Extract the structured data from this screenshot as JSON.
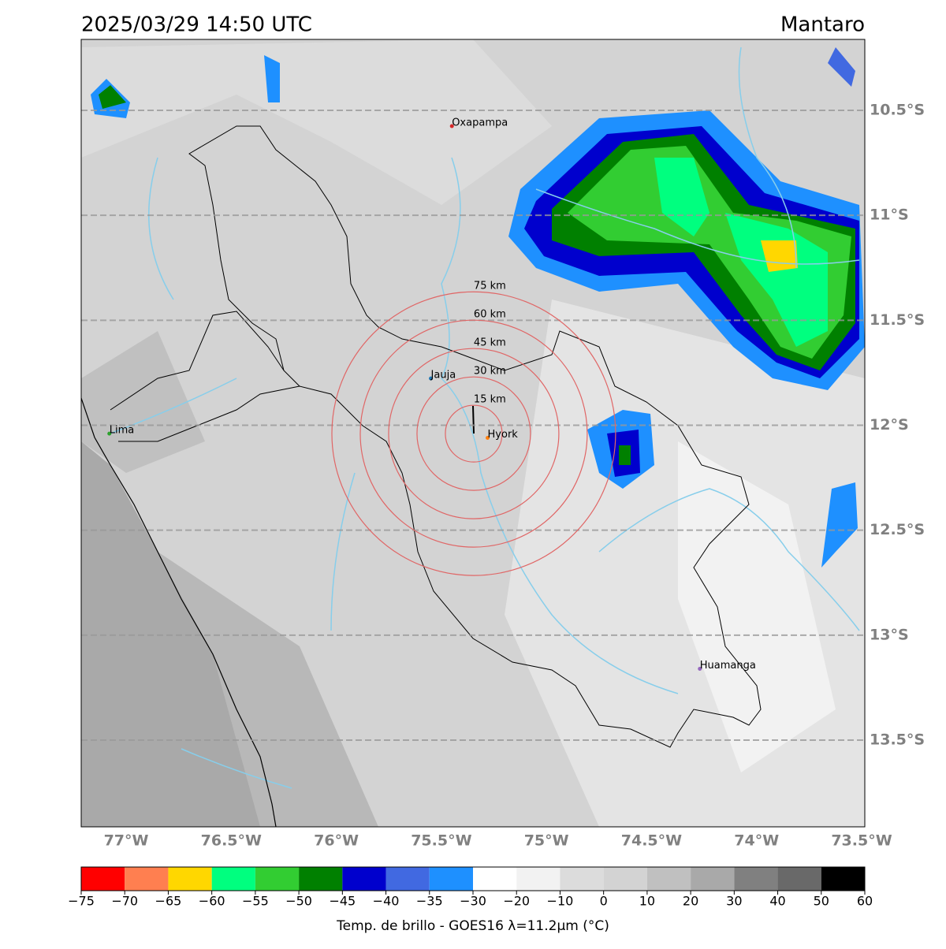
{
  "header": {
    "title": "2025/03/29 14:50 UTC",
    "region": "Mantaro"
  },
  "map": {
    "xlim": [
      -77.214,
      -73.485
    ],
    "ylim": [
      -13.913,
      -10.162
    ],
    "grid": true,
    "xticks": [
      {
        "value": -77,
        "label": "77°W"
      },
      {
        "value": -76.5,
        "label": "76.5°W"
      },
      {
        "value": -76,
        "label": "76°W"
      },
      {
        "value": -75.5,
        "label": "75.5°W"
      },
      {
        "value": -75,
        "label": "75°W"
      },
      {
        "value": -74.5,
        "label": "74.5°W"
      },
      {
        "value": -74,
        "label": "74°W"
      },
      {
        "value": -73.5,
        "label": "73.5°W"
      }
    ],
    "yticks": [
      {
        "value": -10.5,
        "label": "10.5°S"
      },
      {
        "value": -11,
        "label": "11°S"
      },
      {
        "value": -11.5,
        "label": "11.5°S"
      },
      {
        "value": -12,
        "label": "12°S"
      },
      {
        "value": -12.5,
        "label": "12.5°S"
      },
      {
        "value": -13,
        "label": "13°S"
      },
      {
        "value": -13.5,
        "label": "13.5°S"
      }
    ],
    "cities": [
      {
        "name": "Oxapampa",
        "lon": -75.45,
        "lat": -10.575,
        "color": "#d62728"
      },
      {
        "name": "Jauja",
        "lon": -75.55,
        "lat": -11.777,
        "color": "#1f77b4"
      },
      {
        "name": "Lima",
        "lon": -77.08,
        "lat": -12.04,
        "color": "#2ca02c"
      },
      {
        "name": "Hyork",
        "lon": -75.28,
        "lat": -12.06,
        "color": "#ff7f0e"
      },
      {
        "name": "Huamanga",
        "lon": -74.27,
        "lat": -13.16,
        "color": "#9467bd"
      }
    ],
    "rings": {
      "center": [
        -75.346,
        -12.04
      ],
      "radii_km": [
        15,
        30,
        45,
        60,
        75
      ],
      "labels": [
        "15 km",
        "30 km",
        "45 km",
        "60 km",
        "75 km"
      ],
      "color": "#e06666"
    }
  },
  "colorbar": {
    "label": "Temp. de brillo - GOES16 λ=11.2μm (°C)",
    "colors": [
      "#ff0000",
      "#ff7f50",
      "#ffd700",
      "#00ff7f",
      "#32cd32",
      "#008000",
      "#0000cd",
      "#4169e1",
      "#1e90ff",
      "#ffffff",
      "#f2f2f2",
      "#dcdcdc",
      "#d3d3d3",
      "#c0c0c0",
      "#a9a9a9",
      "#808080",
      "#696969",
      "#000000"
    ],
    "ticks": [
      {
        "value": -75,
        "label": "−75"
      },
      {
        "value": -70,
        "label": "−70"
      },
      {
        "value": -65,
        "label": "−65"
      },
      {
        "value": -60,
        "label": "−60"
      },
      {
        "value": -55,
        "label": "−55"
      },
      {
        "value": -50,
        "label": "−50"
      },
      {
        "value": -45,
        "label": "−45"
      },
      {
        "value": -40,
        "label": "−40"
      },
      {
        "value": -35,
        "label": "−35"
      },
      {
        "value": -30,
        "label": "−30"
      },
      {
        "value": -20,
        "label": "−20"
      },
      {
        "value": -10,
        "label": "−10"
      },
      0,
      10,
      20,
      30,
      40,
      50,
      60
    ]
  }
}
